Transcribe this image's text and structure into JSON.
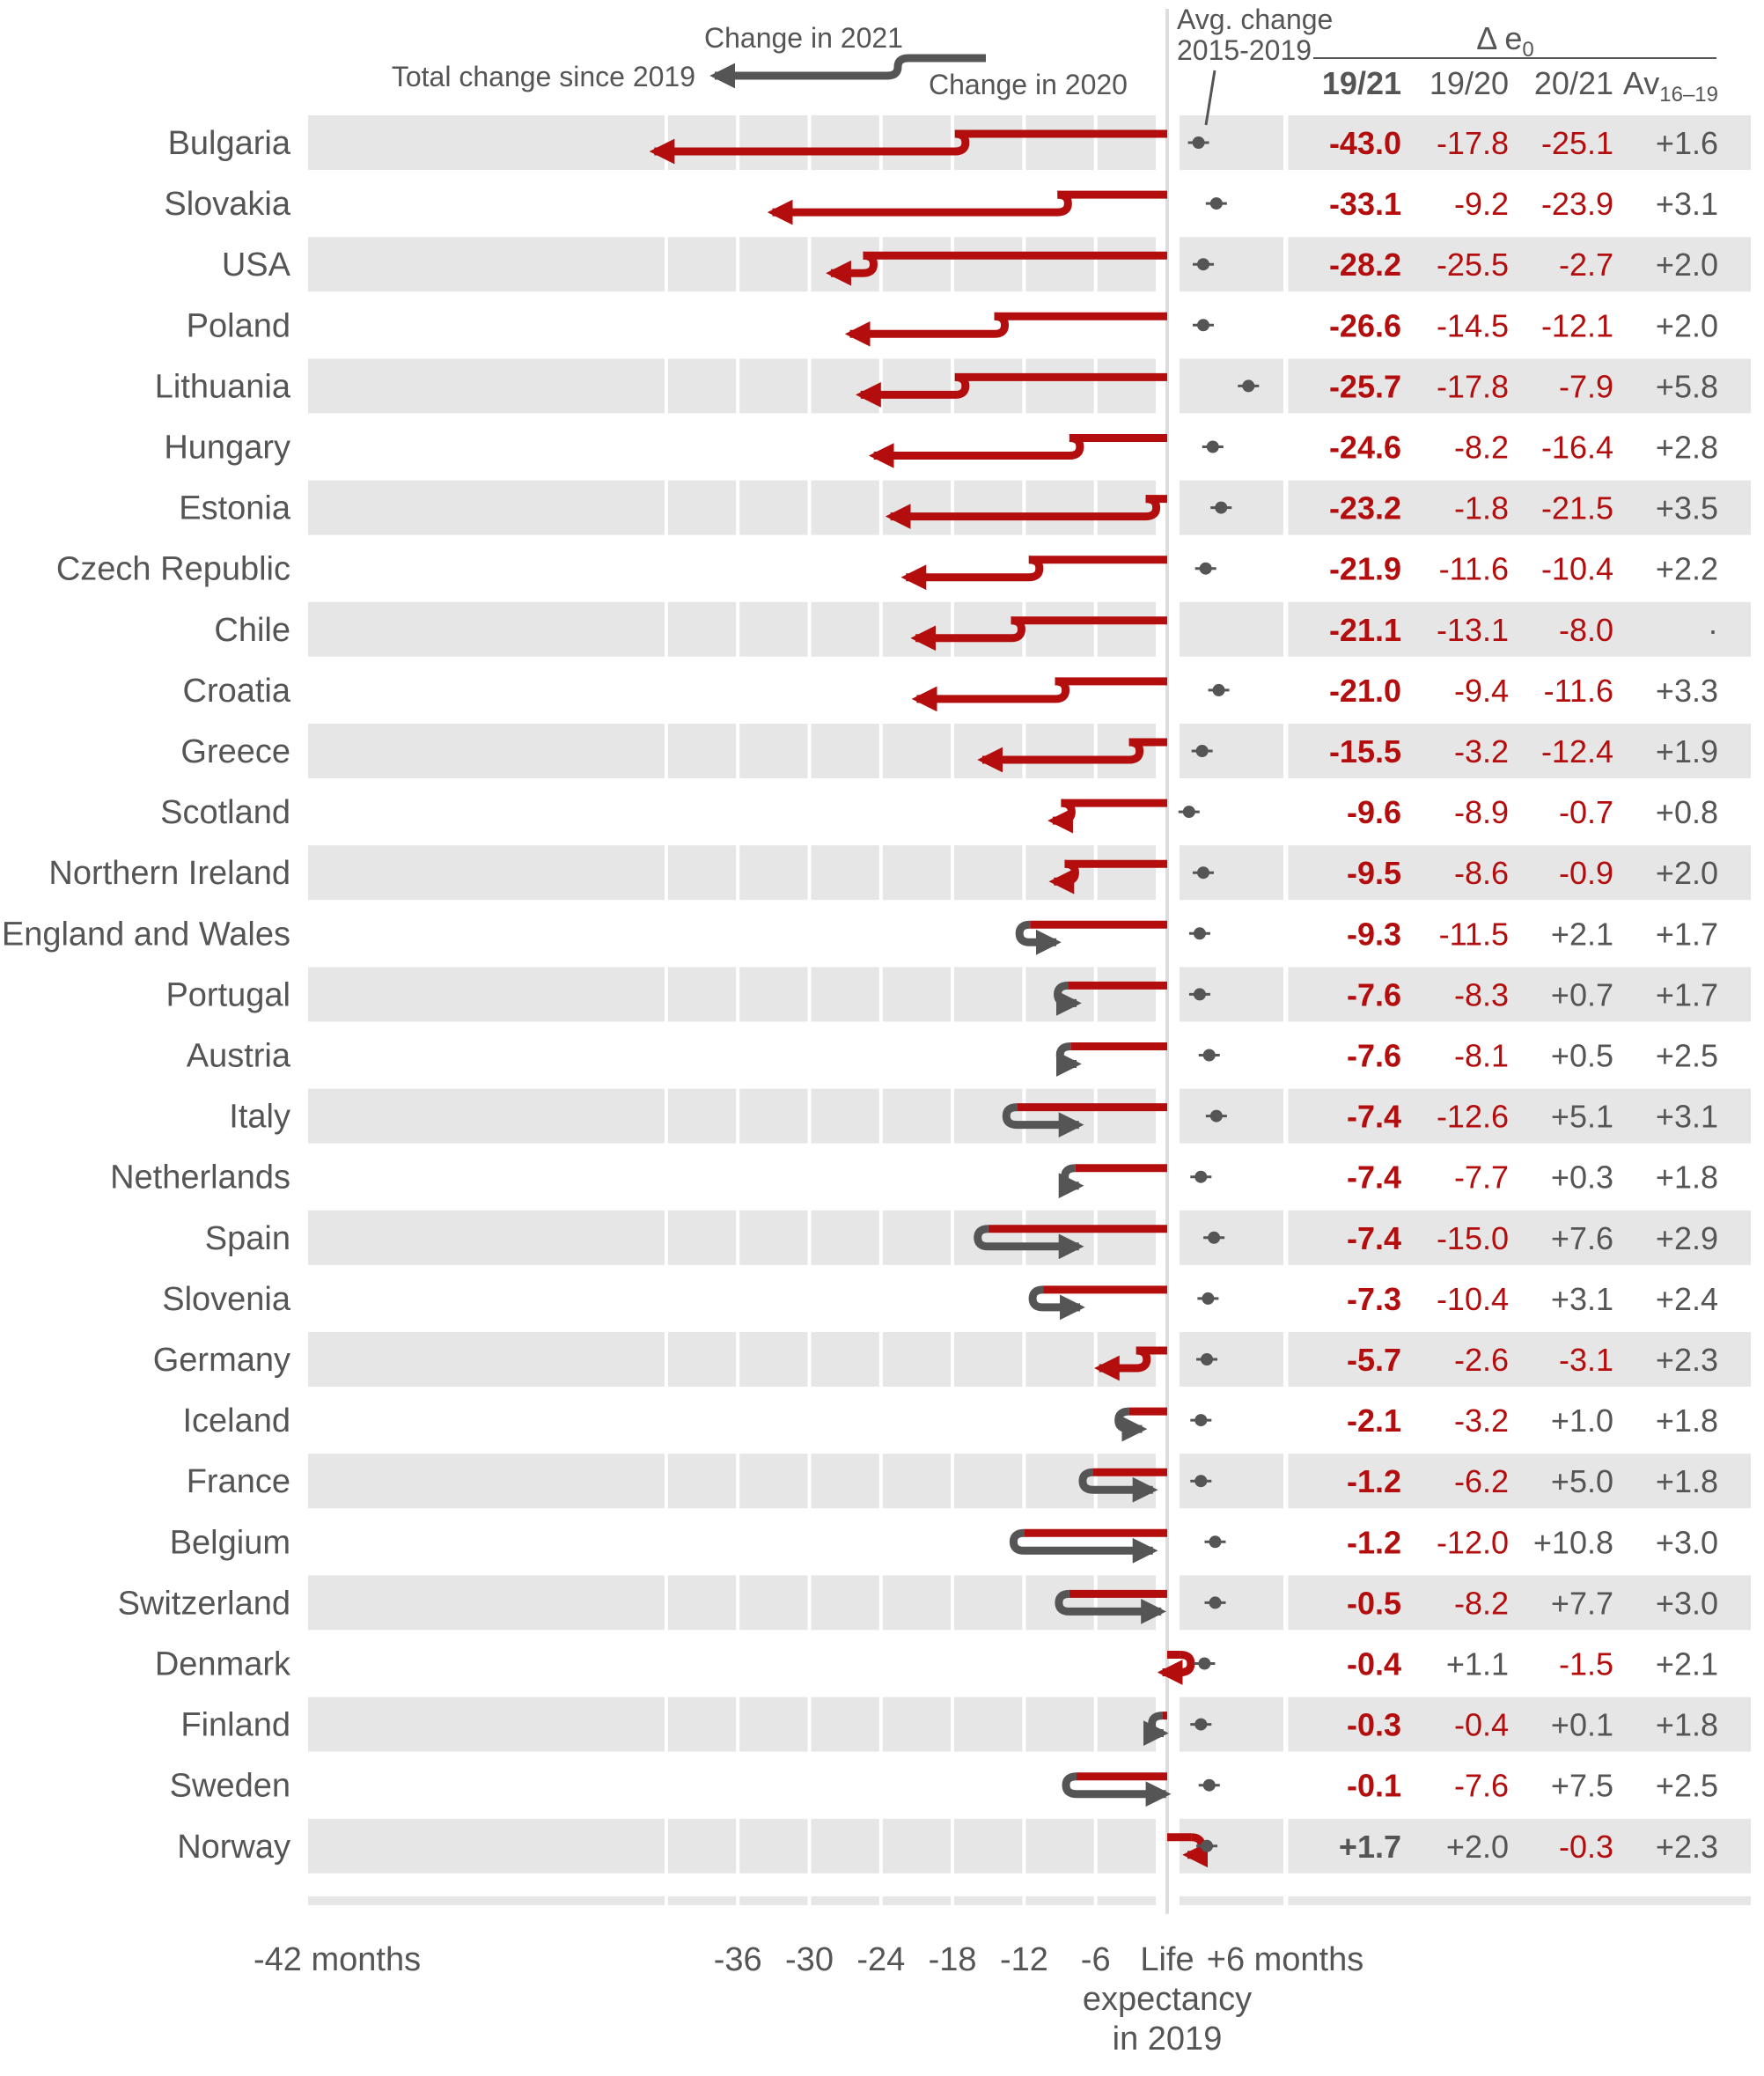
{
  "chart_data": {
    "type": "arrow-change",
    "legend": {
      "change_2021": "Change in 2021",
      "change_2020": "Change in 2020",
      "total": "Total change since 2019"
    },
    "avg_label": [
      "Avg. change",
      "2015-2019"
    ],
    "table_title": "Δ e",
    "table_title_sub": "0",
    "columns": [
      "19/21",
      "19/20",
      "20/21",
      "Av",
      "16–19"
    ],
    "x_axis": {
      "ticks": [
        {
          "value": -42,
          "label": "-42 months"
        },
        {
          "value": -36,
          "label": "-36"
        },
        {
          "value": -30,
          "label": "-30"
        },
        {
          "value": -24,
          "label": "-24"
        },
        {
          "value": -18,
          "label": "-18"
        },
        {
          "value": -12,
          "label": "-12"
        },
        {
          "value": -6,
          "label": "-6"
        }
      ],
      "zero_label": [
        "Life",
        "expectancy",
        "in 2019"
      ],
      "plus_label": "+6 months"
    },
    "rows": [
      {
        "country": "Bulgaria",
        "total": -43.0,
        "c2020": -17.8,
        "c2021": -25.1,
        "avg": 1.6,
        "avg_t": "+1.6",
        "t_total": "-43.0",
        "t_2020": "-17.8",
        "t_2021": "-25.1"
      },
      {
        "country": "Slovakia",
        "total": -33.1,
        "c2020": -9.2,
        "c2021": -23.9,
        "avg": 3.1,
        "avg_t": "+3.1",
        "t_total": "-33.1",
        "t_2020": "-9.2",
        "t_2021": "-23.9"
      },
      {
        "country": "USA",
        "total": -28.2,
        "c2020": -25.5,
        "c2021": -2.7,
        "avg": 2.0,
        "avg_t": "+2.0",
        "t_total": "-28.2",
        "t_2020": "-25.5",
        "t_2021": "-2.7"
      },
      {
        "country": "Poland",
        "total": -26.6,
        "c2020": -14.5,
        "c2021": -12.1,
        "avg": 2.0,
        "avg_t": "+2.0",
        "t_total": "-26.6",
        "t_2020": "-14.5",
        "t_2021": "-12.1"
      },
      {
        "country": "Lithuania",
        "total": -25.7,
        "c2020": -17.8,
        "c2021": -7.9,
        "avg": 5.8,
        "avg_t": "+5.8",
        "t_total": "-25.7",
        "t_2020": "-17.8",
        "t_2021": "-7.9"
      },
      {
        "country": "Hungary",
        "total": -24.6,
        "c2020": -8.2,
        "c2021": -16.4,
        "avg": 2.8,
        "avg_t": "+2.8",
        "t_total": "-24.6",
        "t_2020": "-8.2",
        "t_2021": "-16.4"
      },
      {
        "country": "Estonia",
        "total": -23.2,
        "c2020": -1.8,
        "c2021": -21.5,
        "avg": 3.5,
        "avg_t": "+3.5",
        "t_total": "-23.2",
        "t_2020": "-1.8",
        "t_2021": "-21.5"
      },
      {
        "country": "Czech Republic",
        "total": -21.9,
        "c2020": -11.6,
        "c2021": -10.4,
        "avg": 2.2,
        "avg_t": "+2.2",
        "t_total": "-21.9",
        "t_2020": "-11.6",
        "t_2021": "-10.4"
      },
      {
        "country": "Chile",
        "total": -21.1,
        "c2020": -13.1,
        "c2021": -8.0,
        "avg": null,
        "avg_t": "·",
        "t_total": "-21.1",
        "t_2020": "-13.1",
        "t_2021": "-8.0"
      },
      {
        "country": "Croatia",
        "total": -21.0,
        "c2020": -9.4,
        "c2021": -11.6,
        "avg": 3.3,
        "avg_t": "+3.3",
        "t_total": "-21.0",
        "t_2020": "-9.4",
        "t_2021": "-11.6"
      },
      {
        "country": "Greece",
        "total": -15.5,
        "c2020": -3.2,
        "c2021": -12.4,
        "avg": 1.9,
        "avg_t": "+1.9",
        "t_total": "-15.5",
        "t_2020": "-3.2",
        "t_2021": "-12.4"
      },
      {
        "country": "Scotland",
        "total": -9.6,
        "c2020": -8.9,
        "c2021": -0.7,
        "avg": 0.8,
        "avg_t": "+0.8",
        "t_total": "-9.6",
        "t_2020": "-8.9",
        "t_2021": "-0.7"
      },
      {
        "country": "Northern Ireland",
        "total": -9.5,
        "c2020": -8.6,
        "c2021": -0.9,
        "avg": 2.0,
        "avg_t": "+2.0",
        "t_total": "-9.5",
        "t_2020": "-8.6",
        "t_2021": "-0.9"
      },
      {
        "country": "England and Wales",
        "total": -9.3,
        "c2020": -11.5,
        "c2021": 2.1,
        "avg": 1.7,
        "avg_t": "+1.7",
        "t_total": "-9.3",
        "t_2020": "-11.5",
        "t_2021": "+2.1"
      },
      {
        "country": "Portugal",
        "total": -7.6,
        "c2020": -8.3,
        "c2021": 0.7,
        "avg": 1.7,
        "avg_t": "+1.7",
        "t_total": "-7.6",
        "t_2020": "-8.3",
        "t_2021": "+0.7"
      },
      {
        "country": "Austria",
        "total": -7.6,
        "c2020": -8.1,
        "c2021": 0.5,
        "avg": 2.5,
        "avg_t": "+2.5",
        "t_total": "-7.6",
        "t_2020": "-8.1",
        "t_2021": "+0.5"
      },
      {
        "country": "Italy",
        "total": -7.4,
        "c2020": -12.6,
        "c2021": 5.1,
        "avg": 3.1,
        "avg_t": "+3.1",
        "t_total": "-7.4",
        "t_2020": "-12.6",
        "t_2021": "+5.1"
      },
      {
        "country": "Netherlands",
        "total": -7.4,
        "c2020": -7.7,
        "c2021": 0.3,
        "avg": 1.8,
        "avg_t": "+1.8",
        "t_total": "-7.4",
        "t_2020": "-7.7",
        "t_2021": "+0.3"
      },
      {
        "country": "Spain",
        "total": -7.4,
        "c2020": -15.0,
        "c2021": 7.6,
        "avg": 2.9,
        "avg_t": "+2.9",
        "t_total": "-7.4",
        "t_2020": "-15.0",
        "t_2021": "+7.6"
      },
      {
        "country": "Slovenia",
        "total": -7.3,
        "c2020": -10.4,
        "c2021": 3.1,
        "avg": 2.4,
        "avg_t": "+2.4",
        "t_total": "-7.3",
        "t_2020": "-10.4",
        "t_2021": "+3.1"
      },
      {
        "country": "Germany",
        "total": -5.7,
        "c2020": -2.6,
        "c2021": -3.1,
        "avg": 2.3,
        "avg_t": "+2.3",
        "t_total": "-5.7",
        "t_2020": "-2.6",
        "t_2021": "-3.1"
      },
      {
        "country": "Iceland",
        "total": -2.1,
        "c2020": -3.2,
        "c2021": 1.0,
        "avg": 1.8,
        "avg_t": "+1.8",
        "t_total": "-2.1",
        "t_2020": "-3.2",
        "t_2021": "+1.0"
      },
      {
        "country": "France",
        "total": -1.2,
        "c2020": -6.2,
        "c2021": 5.0,
        "avg": 1.8,
        "avg_t": "+1.8",
        "t_total": "-1.2",
        "t_2020": "-6.2",
        "t_2021": "+5.0"
      },
      {
        "country": "Belgium",
        "total": -1.2,
        "c2020": -12.0,
        "c2021": 10.8,
        "avg": 3.0,
        "avg_t": "+3.0",
        "t_total": "-1.2",
        "t_2020": "-12.0",
        "t_2021": "+10.8"
      },
      {
        "country": "Switzerland",
        "total": -0.5,
        "c2020": -8.2,
        "c2021": 7.7,
        "avg": 3.0,
        "avg_t": "+3.0",
        "t_total": "-0.5",
        "t_2020": "-8.2",
        "t_2021": "+7.7"
      },
      {
        "country": "Denmark",
        "total": -0.4,
        "c2020": 1.1,
        "c2021": -1.5,
        "avg": 2.1,
        "avg_t": "+2.1",
        "t_total": "-0.4",
        "t_2020": "+1.1",
        "t_2021": "-1.5"
      },
      {
        "country": "Finland",
        "total": -0.3,
        "c2020": -0.4,
        "c2021": 0.1,
        "avg": 1.8,
        "avg_t": "+1.8",
        "t_total": "-0.3",
        "t_2020": "-0.4",
        "t_2021": "+0.1"
      },
      {
        "country": "Sweden",
        "total": -0.1,
        "c2020": -7.6,
        "c2021": 7.5,
        "avg": 2.5,
        "avg_t": "+2.5",
        "t_total": "-0.1",
        "t_2020": "-7.6",
        "t_2021": "+7.5"
      },
      {
        "country": "Norway",
        "total": 1.7,
        "c2020": 2.0,
        "c2021": -0.3,
        "avg": 2.3,
        "avg_t": "+2.3",
        "t_total": "+1.7",
        "t_2020": "+2.0",
        "t_2021": "-0.3"
      }
    ],
    "colors": {
      "red": "#b30d0d",
      "grey": "#555555",
      "band": "#e6e6e6"
    }
  }
}
